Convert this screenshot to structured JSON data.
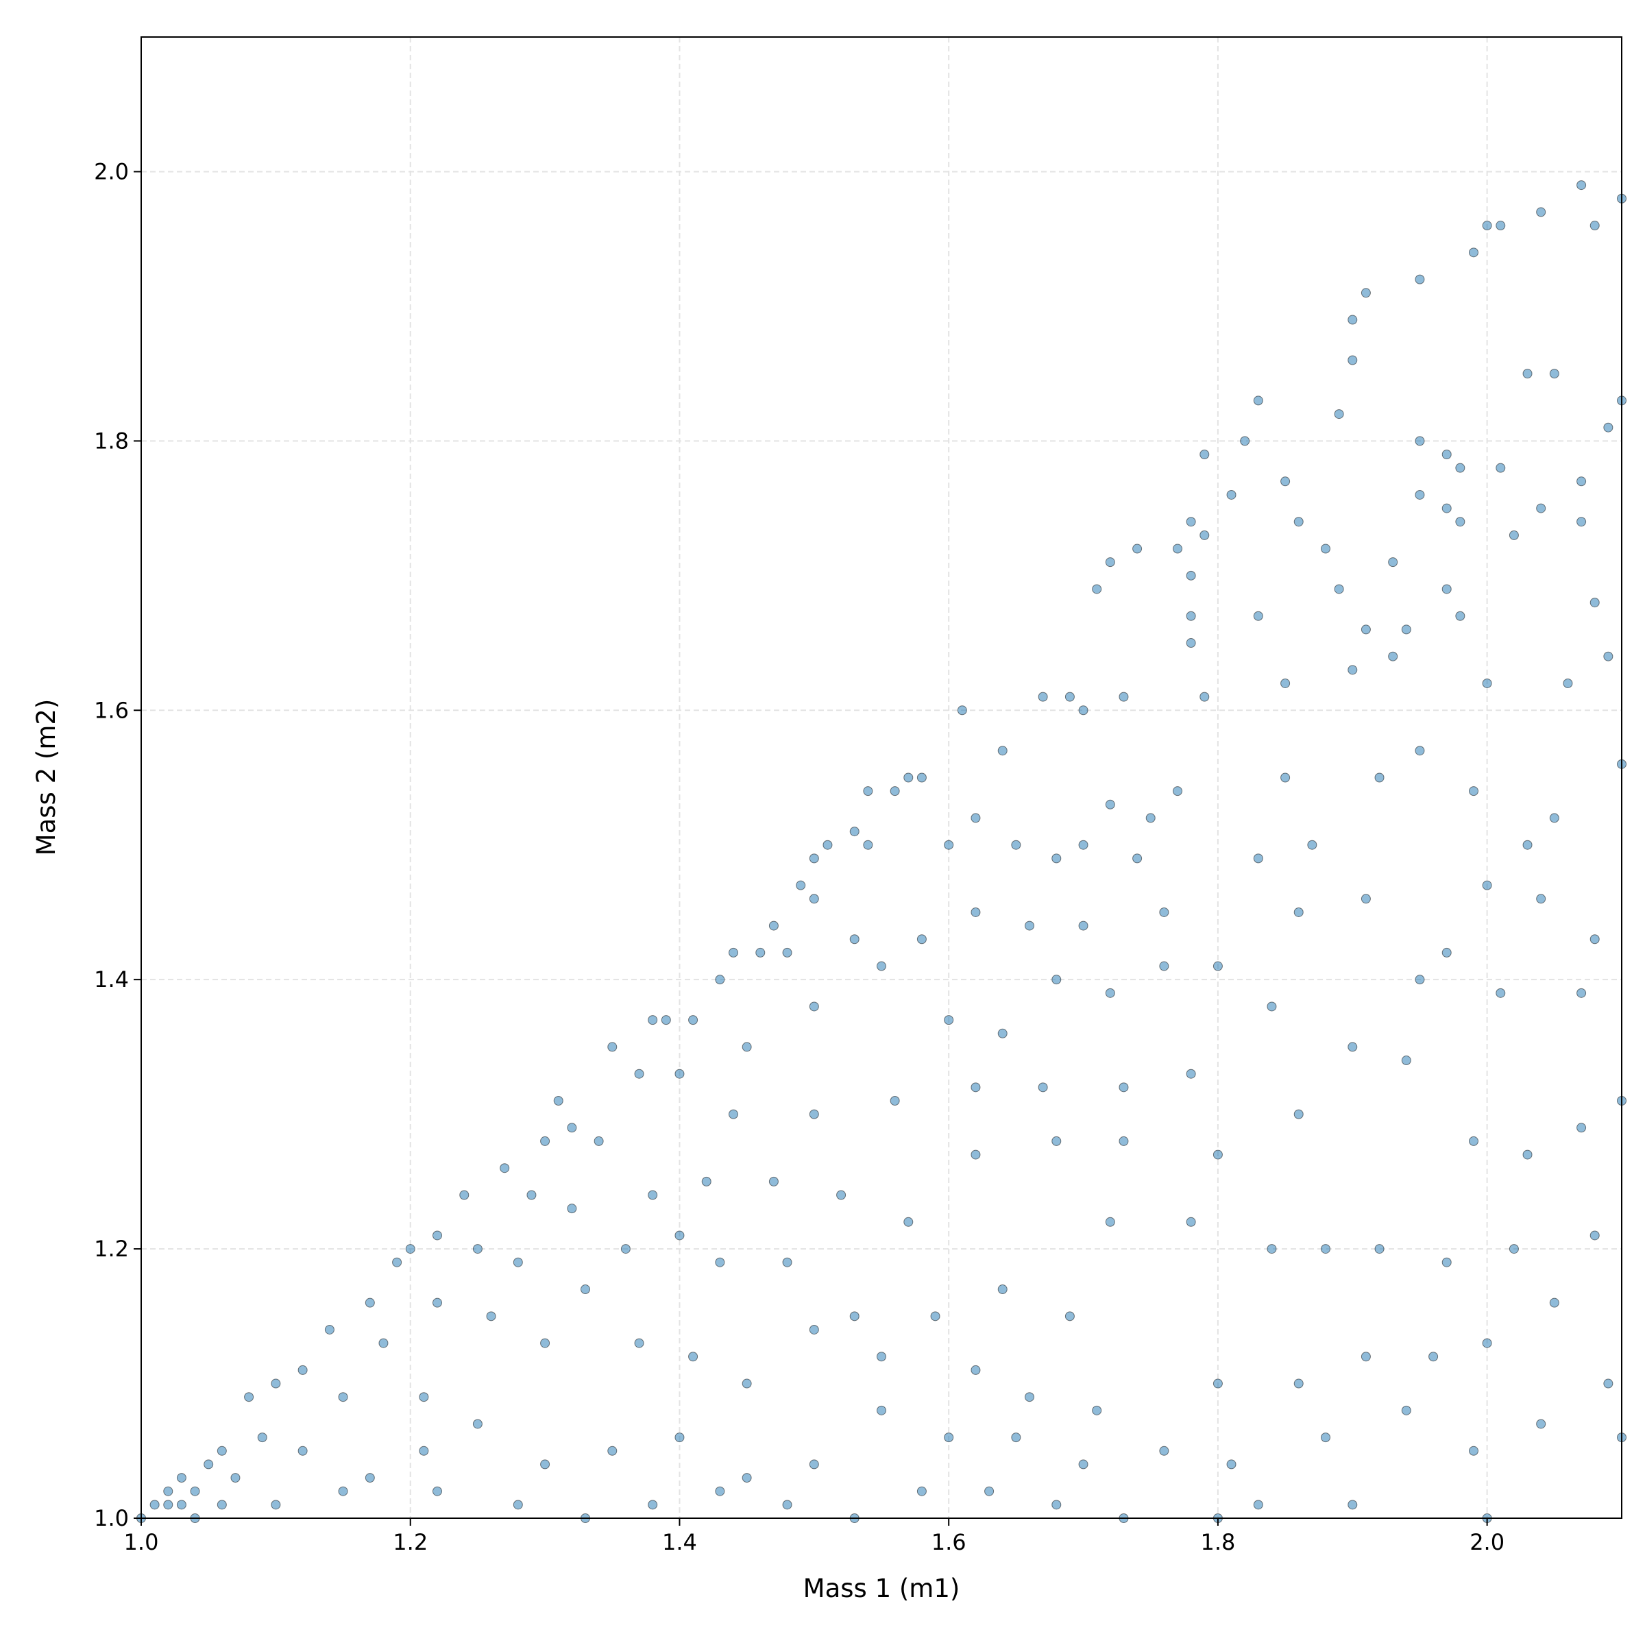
{
  "chart_data": {
    "type": "scatter",
    "xlabel": "Mass 1 (m1)",
    "ylabel": "Mass 2 (m2)",
    "xlim": [
      1.0,
      2.1
    ],
    "ylim": [
      1.0,
      2.1
    ],
    "xticks": [
      {
        "value": 1.0,
        "label": "1.0"
      },
      1.2,
      1.4,
      1.6,
      1.8,
      {
        "value": 2.0,
        "label": "2.0"
      }
    ],
    "yticks": [
      {
        "value": 1.0,
        "label": "1.0"
      },
      1.2,
      1.4,
      1.6,
      1.8,
      {
        "value": 2.0,
        "label": "2.0"
      }
    ],
    "grid": true,
    "color": "#1f77b4",
    "x": [
      1.95,
      1.99,
      2.0,
      2.01,
      2.04,
      2.07,
      2.08,
      2.1,
      1.91,
      1.9,
      1.9,
      2.03,
      2.05,
      2.1,
      2.09,
      1.82,
      1.83,
      1.89,
      1.95,
      1.79,
      1.97,
      1.98,
      2.01,
      1.81,
      1.85,
      1.95,
      1.97,
      2.04,
      2.07,
      1.78,
      1.79,
      1.86,
      1.98,
      2.07,
      1.74,
      1.77,
      1.88,
      2.02,
      1.72,
      1.71,
      1.78,
      1.93,
      1.89,
      1.97,
      1.78,
      1.83,
      2.08,
      1.91,
      1.94,
      1.78,
      1.98,
      1.73,
      1.67,
      1.69,
      1.61,
      1.79,
      1.85,
      1.93,
      1.9,
      2.0,
      2.06,
      2.09,
      1.7,
      1.64,
      1.57,
      1.56,
      1.58,
      1.54,
      1.51,
      1.5,
      1.53,
      1.54,
      1.49,
      1.47,
      1.46,
      1.44,
      1.43,
      1.41,
      1.39,
      1.38,
      1.35,
      1.31,
      1.32,
      1.3,
      1.27,
      1.24,
      1.22,
      1.2,
      1.19,
      1.17,
      1.14,
      1.12,
      1.1,
      1.08,
      1.06,
      1.05,
      1.03,
      1.02,
      1.01,
      1.0,
      1.02,
      1.04,
      1.03,
      1.6,
      1.62,
      1.65,
      1.68,
      1.7,
      1.75,
      1.77,
      1.72,
      1.74,
      1.85,
      1.87,
      1.92,
      1.95,
      1.99,
      2.03,
      2.05,
      2.1,
      1.83,
      1.86,
      1.91,
      1.97,
      2.0,
      2.04,
      2.08,
      1.76,
      1.7,
      1.66,
      1.62,
      1.58,
      1.55,
      1.53,
      1.5,
      1.48,
      1.45,
      1.5,
      1.6,
      1.64,
      1.68,
      1.72,
      1.76,
      1.8,
      1.84,
      1.95,
      2.01,
      2.07,
      1.78,
      1.73,
      1.67,
      1.62,
      1.56,
      1.5,
      1.44,
      1.4,
      1.37,
      1.34,
      1.38,
      1.42,
      1.47,
      1.52,
      1.57,
      1.62,
      1.68,
      1.73,
      1.8,
      1.86,
      1.9,
      1.94,
      1.99,
      2.03,
      2.07,
      2.1,
      1.29,
      1.32,
      1.25,
      1.28,
      1.33,
      1.36,
      1.4,
      1.43,
      1.48,
      1.53,
      1.59,
      1.64,
      1.69,
      1.72,
      1.78,
      1.84,
      1.88,
      1.92,
      1.97,
      2.02,
      2.08,
      1.22,
      1.18,
      1.15,
      1.21,
      1.26,
      1.3,
      1.37,
      1.41,
      1.45,
      1.5,
      1.55,
      1.62,
      1.66,
      1.71,
      1.8,
      1.86,
      1.91,
      1.96,
      2.0,
      2.05,
      2.09,
      1.09,
      1.12,
      1.17,
      1.21,
      1.25,
      1.3,
      1.35,
      1.4,
      1.45,
      1.5,
      1.55,
      1.6,
      1.65,
      1.7,
      1.76,
      1.81,
      1.88,
      1.94,
      1.99,
      2.04,
      2.1,
      1.1,
      1.15,
      1.22,
      1.28,
      1.33,
      1.38,
      1.43,
      1.48,
      1.53,
      1.58,
      1.63,
      1.68,
      1.73,
      1.8,
      1.83,
      1.9,
      2.0,
      1.07,
      1.06,
      1.04
    ],
    "values": [
      1.92,
      1.94,
      1.96,
      1.96,
      1.97,
      1.99,
      1.96,
      1.98,
      1.91,
      1.89,
      1.86,
      1.85,
      1.85,
      1.83,
      1.81,
      1.8,
      1.83,
      1.82,
      1.8,
      1.79,
      1.79,
      1.78,
      1.78,
      1.76,
      1.77,
      1.76,
      1.75,
      1.75,
      1.77,
      1.74,
      1.73,
      1.74,
      1.74,
      1.74,
      1.72,
      1.72,
      1.72,
      1.73,
      1.71,
      1.69,
      1.7,
      1.71,
      1.69,
      1.69,
      1.67,
      1.67,
      1.68,
      1.66,
      1.66,
      1.65,
      1.67,
      1.61,
      1.61,
      1.61,
      1.6,
      1.61,
      1.62,
      1.64,
      1.63,
      1.62,
      1.62,
      1.64,
      1.6,
      1.57,
      1.55,
      1.54,
      1.55,
      1.54,
      1.5,
      1.49,
      1.51,
      1.5,
      1.47,
      1.44,
      1.42,
      1.42,
      1.4,
      1.37,
      1.37,
      1.37,
      1.35,
      1.31,
      1.29,
      1.28,
      1.26,
      1.24,
      1.21,
      1.2,
      1.19,
      1.16,
      1.14,
      1.11,
      1.1,
      1.09,
      1.05,
      1.04,
      1.03,
      1.02,
      1.01,
      1.0,
      1.01,
      1.02,
      1.01,
      1.5,
      1.52,
      1.5,
      1.49,
      1.5,
      1.52,
      1.54,
      1.53,
      1.49,
      1.55,
      1.5,
      1.55,
      1.57,
      1.54,
      1.5,
      1.52,
      1.56,
      1.49,
      1.45,
      1.46,
      1.42,
      1.47,
      1.46,
      1.43,
      1.45,
      1.44,
      1.44,
      1.45,
      1.43,
      1.41,
      1.43,
      1.46,
      1.42,
      1.35,
      1.38,
      1.37,
      1.36,
      1.4,
      1.39,
      1.41,
      1.41,
      1.38,
      1.4,
      1.39,
      1.39,
      1.33,
      1.32,
      1.32,
      1.32,
      1.31,
      1.3,
      1.3,
      1.33,
      1.33,
      1.28,
      1.24,
      1.25,
      1.25,
      1.24,
      1.22,
      1.27,
      1.28,
      1.28,
      1.27,
      1.3,
      1.35,
      1.34,
      1.28,
      1.27,
      1.29,
      1.31,
      1.24,
      1.23,
      1.2,
      1.19,
      1.17,
      1.2,
      1.21,
      1.19,
      1.19,
      1.15,
      1.15,
      1.17,
      1.15,
      1.22,
      1.22,
      1.2,
      1.2,
      1.2,
      1.19,
      1.2,
      1.21,
      1.16,
      1.13,
      1.09,
      1.09,
      1.15,
      1.13,
      1.13,
      1.12,
      1.1,
      1.14,
      1.12,
      1.11,
      1.09,
      1.08,
      1.1,
      1.1,
      1.12,
      1.12,
      1.13,
      1.16,
      1.1,
      1.06,
      1.05,
      1.03,
      1.05,
      1.07,
      1.04,
      1.05,
      1.06,
      1.03,
      1.04,
      1.08,
      1.06,
      1.06,
      1.04,
      1.05,
      1.04,
      1.06,
      1.08,
      1.05,
      1.07,
      1.06,
      1.01,
      1.02,
      1.02,
      1.01,
      1.0,
      1.01,
      1.02,
      1.01,
      1.0,
      1.02,
      1.02,
      1.01,
      1.0,
      1.0,
      1.01,
      1.01,
      1.0,
      1.03,
      1.01,
      1.0
    ]
  }
}
